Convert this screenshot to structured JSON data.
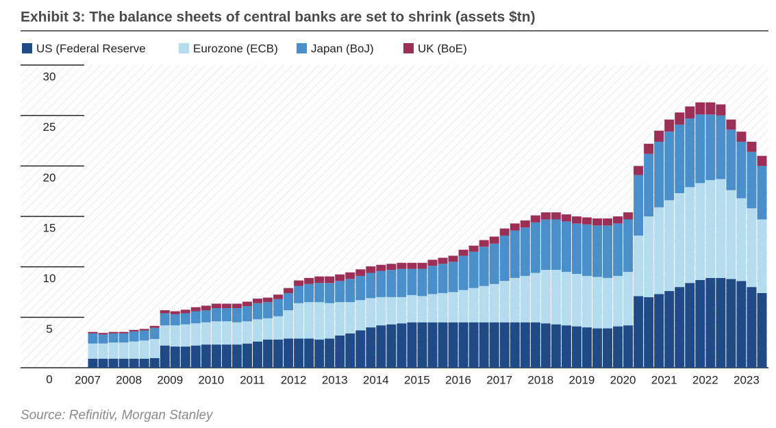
{
  "chart_data": {
    "type": "stacked-bar",
    "title": "Exhibit 3: The balance sheets of central banks are set to shrink (assets $tn)",
    "source": "Source: Refinitiv, Morgan Stanley",
    "categories": [
      "2007",
      null,
      null,
      null,
      "2008",
      null,
      null,
      null,
      "2009",
      null,
      null,
      null,
      "2010",
      null,
      null,
      null,
      "2011",
      null,
      null,
      null,
      "2012",
      null,
      null,
      null,
      "2013",
      null,
      null,
      null,
      "2014",
      null,
      null,
      null,
      "2015",
      null,
      null,
      null,
      "2016",
      null,
      null,
      null,
      "2017",
      null,
      null,
      null,
      "2018",
      null,
      null,
      null,
      "2019",
      null,
      null,
      null,
      "2020",
      null,
      null,
      null,
      "2021",
      null,
      null,
      null,
      "2022",
      null,
      null,
      null,
      "2023",
      null
    ],
    "ylim": [
      0,
      30
    ],
    "yticks": [
      0,
      5,
      10,
      15,
      20,
      25,
      30
    ],
    "series": [
      {
        "name": "US (Federal Reserve",
        "color": "#1f4a86",
        "values": [
          0.9,
          0.9,
          0.9,
          0.9,
          0.9,
          0.9,
          0.95,
          2.2,
          2.1,
          2.1,
          2.2,
          2.3,
          2.3,
          2.3,
          2.3,
          2.4,
          2.6,
          2.8,
          2.8,
          2.9,
          2.9,
          2.9,
          2.8,
          2.9,
          3.2,
          3.4,
          3.7,
          4.0,
          4.2,
          4.3,
          4.4,
          4.5,
          4.5,
          4.5,
          4.5,
          4.5,
          4.5,
          4.5,
          4.5,
          4.5,
          4.5,
          4.5,
          4.5,
          4.5,
          4.4,
          4.3,
          4.2,
          4.1,
          4.0,
          3.9,
          3.9,
          4.1,
          4.2,
          7.1,
          7.0,
          7.3,
          7.6,
          8.0,
          8.4,
          8.7,
          8.9,
          8.9,
          8.8,
          8.6,
          8.0,
          7.4
        ]
      },
      {
        "name": "Eurozone (ECB)",
        "color": "#b5dbef",
        "values": [
          1.5,
          1.5,
          1.6,
          1.6,
          1.7,
          1.8,
          1.9,
          2.0,
          2.1,
          2.2,
          2.2,
          2.2,
          2.3,
          2.3,
          2.2,
          2.2,
          2.2,
          2.1,
          2.3,
          2.8,
          3.5,
          3.6,
          3.7,
          3.5,
          3.3,
          3.1,
          3.0,
          2.9,
          2.8,
          2.7,
          2.6,
          2.7,
          2.6,
          2.8,
          2.9,
          3.0,
          3.2,
          3.4,
          3.6,
          3.8,
          4.1,
          4.4,
          4.6,
          4.9,
          5.3,
          5.4,
          5.3,
          5.2,
          5.1,
          5.1,
          5.0,
          5.0,
          5.3,
          6.0,
          8.0,
          8.6,
          9.0,
          9.3,
          9.5,
          9.6,
          9.7,
          9.8,
          8.8,
          8.2,
          7.8,
          7.3
        ]
      },
      {
        "name": "Japan (BoJ)",
        "color": "#4a8fc9",
        "values": [
          1.0,
          0.9,
          0.9,
          0.9,
          1.0,
          1.0,
          1.1,
          1.2,
          1.1,
          1.1,
          1.2,
          1.2,
          1.3,
          1.3,
          1.4,
          1.5,
          1.6,
          1.6,
          1.7,
          1.7,
          1.7,
          1.8,
          1.9,
          2.0,
          2.1,
          2.3,
          2.4,
          2.5,
          2.6,
          2.7,
          2.8,
          2.6,
          2.7,
          2.8,
          2.9,
          3.0,
          3.4,
          3.6,
          3.9,
          4.0,
          4.5,
          4.7,
          4.8,
          5.0,
          5.0,
          5.0,
          5.0,
          5.0,
          5.1,
          5.1,
          5.2,
          5.2,
          5.2,
          6.0,
          6.2,
          6.5,
          6.8,
          6.8,
          6.8,
          6.8,
          6.5,
          6.3,
          6.0,
          5.6,
          5.6,
          5.3
        ]
      },
      {
        "name": "UK (BoE)",
        "color": "#9b2f56",
        "values": [
          0.15,
          0.15,
          0.15,
          0.15,
          0.15,
          0.15,
          0.2,
          0.3,
          0.3,
          0.35,
          0.4,
          0.45,
          0.45,
          0.45,
          0.45,
          0.45,
          0.45,
          0.45,
          0.45,
          0.5,
          0.55,
          0.6,
          0.65,
          0.65,
          0.65,
          0.65,
          0.65,
          0.65,
          0.6,
          0.6,
          0.6,
          0.6,
          0.6,
          0.6,
          0.6,
          0.6,
          0.6,
          0.6,
          0.65,
          0.7,
          0.7,
          0.7,
          0.7,
          0.7,
          0.7,
          0.7,
          0.7,
          0.7,
          0.7,
          0.7,
          0.7,
          0.7,
          0.7,
          0.9,
          1.0,
          1.1,
          1.2,
          1.2,
          1.2,
          1.2,
          1.2,
          1.1,
          1.0,
          1.0,
          1.0,
          1.0
        ]
      }
    ]
  }
}
